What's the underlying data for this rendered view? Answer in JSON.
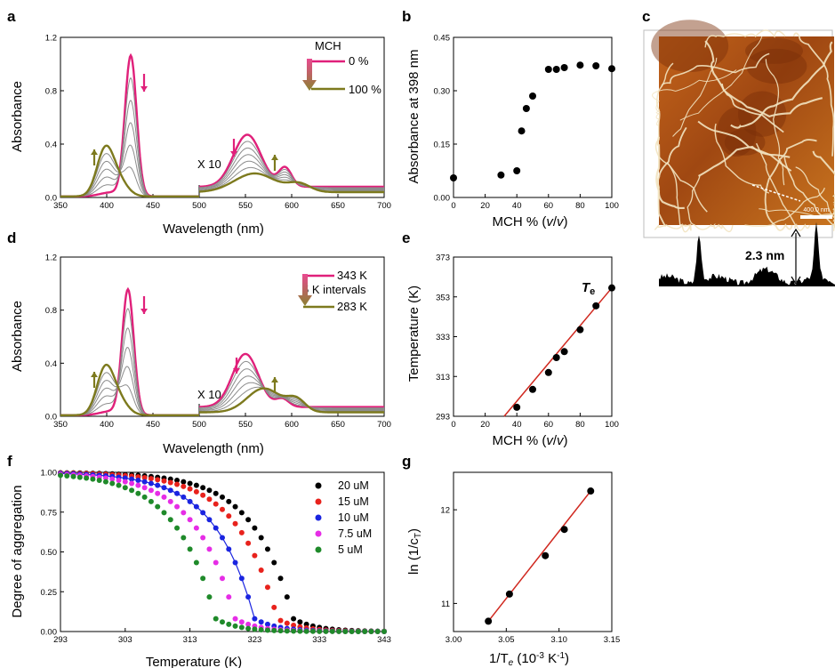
{
  "colors": {
    "magenta": "#e0207a",
    "olive": "#7d7a1e",
    "grey": "#8c8c8c",
    "fit": "#d0281f",
    "afm_dark": "#7a2e08",
    "afm_mid": "#c4651b",
    "afm_light": "#f2e3c0"
  },
  "panel_labels": [
    "a",
    "b",
    "c",
    "d",
    "e",
    "f",
    "g"
  ],
  "chart_data": [
    {
      "id": "a",
      "type": "line",
      "xlabel": "Wavelength (nm)",
      "ylabel": "Absorbance",
      "xlim": [
        350,
        700
      ],
      "ylim": [
        0,
        1.2
      ],
      "xticks": [
        "350",
        "400",
        "450",
        "500",
        "550",
        "600",
        "650",
        "700"
      ],
      "yticks": [
        "0.0",
        "0.4",
        "0.8",
        "1.2"
      ],
      "annotation": "X 10",
      "legend": {
        "title": "MCH",
        "start": "0 %",
        "end": "100 %"
      },
      "series": [
        {
          "name": "0 %",
          "color": "magenta",
          "peak_uv_x": 426,
          "peak_uv_y": 1.06,
          "vis_peaks": [
            [
              552,
              0.47
            ],
            [
              592,
              0.2
            ]
          ]
        },
        {
          "name": "100 %",
          "color": "olive",
          "peak_uv_x": 398,
          "peak_uv_y": 0.37,
          "vis_peaks": [
            [
              560,
              0.18
            ],
            [
              608,
              0.1
            ]
          ]
        }
      ]
    },
    {
      "id": "b",
      "type": "scatter",
      "xlabel": "MCH % (v/v)",
      "ylabel": "Absorbance at 398 nm",
      "xlim": [
        0,
        100
      ],
      "ylim": [
        0,
        0.45
      ],
      "xticks": [
        "0",
        "20",
        "40",
        "60",
        "80",
        "100"
      ],
      "yticks": [
        "0.00",
        "0.15",
        "0.30",
        "0.45"
      ],
      "points": [
        [
          0,
          0.055
        ],
        [
          30,
          0.063
        ],
        [
          40,
          0.075
        ],
        [
          43,
          0.187
        ],
        [
          46,
          0.25
        ],
        [
          50,
          0.285
        ],
        [
          60,
          0.36
        ],
        [
          65,
          0.36
        ],
        [
          70,
          0.365
        ],
        [
          80,
          0.372
        ],
        [
          90,
          0.37
        ],
        [
          100,
          0.362
        ]
      ]
    },
    {
      "id": "d",
      "type": "line",
      "xlabel": "Wavelength (nm)",
      "ylabel": "Absorbance",
      "xlim": [
        350,
        700
      ],
      "ylim": [
        0,
        1.2
      ],
      "xticks": [
        "350",
        "400",
        "450",
        "500",
        "550",
        "600",
        "650",
        "700"
      ],
      "yticks": [
        "0.0",
        "0.4",
        "0.8",
        "1.2"
      ],
      "annotation": "X 10",
      "legend": {
        "start": "343 K",
        "middle": "5 K intervals",
        "end": "283 K"
      },
      "series": [
        {
          "name": "343 K",
          "color": "magenta",
          "peak_uv_x": 423,
          "peak_uv_y": 0.95,
          "vis_peaks": [
            [
              550,
              0.46
            ],
            [
              590,
              0.12
            ]
          ]
        },
        {
          "name": "283 K",
          "color": "olive",
          "peak_uv_x": 398,
          "peak_uv_y": 0.37,
          "vis_peaks": [
            [
              570,
              0.2
            ],
            [
              605,
              0.12
            ]
          ]
        }
      ]
    },
    {
      "id": "e",
      "type": "scatter",
      "xlabel": "MCH % (v/v)",
      "ylabel": "Temperature (K)",
      "annotation": "T",
      "annotation_sub": "e",
      "xlim": [
        0,
        100
      ],
      "ylim": [
        293,
        373
      ],
      "xticks": [
        "0",
        "20",
        "40",
        "60",
        "80",
        "100"
      ],
      "yticks": [
        "293",
        "313",
        "333",
        "353",
        "373"
      ],
      "points": [
        [
          40,
          297.5
        ],
        [
          50,
          306.5
        ],
        [
          60,
          315
        ],
        [
          65,
          322.5
        ],
        [
          70,
          325.5
        ],
        [
          80,
          336.5
        ],
        [
          90,
          348.5
        ],
        [
          100,
          357.5
        ]
      ],
      "fit": [
        [
          32,
          293
        ],
        [
          100,
          357.5
        ]
      ]
    },
    {
      "id": "f",
      "type": "scatter",
      "xlabel": "Temperature (K)",
      "ylabel": "Degree of aggregation",
      "xlim": [
        293,
        343
      ],
      "ylim": [
        0,
        1
      ],
      "xticks": [
        "293",
        "303",
        "313",
        "323",
        "333",
        "343"
      ],
      "yticks": [
        "0.00",
        "0.25",
        "0.50",
        "0.75",
        "1.00"
      ],
      "series": [
        {
          "name": "20 uM",
          "color": "#000000",
          "Te": 329
        },
        {
          "name": "15 uM",
          "color": "#e8221c",
          "Te": 326.5
        },
        {
          "name": "10 uM",
          "color": "#1a24e0",
          "Te": 323
        },
        {
          "name": "7.5 uM",
          "color": "#e62de6",
          "Te": 320
        },
        {
          "name": "5 uM",
          "color": "#1f8a2a",
          "Te": 317
        }
      ]
    },
    {
      "id": "g",
      "type": "scatter",
      "xlabel": "1/T",
      "xlabel_sub": "e",
      "xlabel_tail": " (10",
      "xlabel_sup": "-3",
      "xlabel_end": " K",
      "xlabel_sup2": "-1",
      "xlabel_close": ")",
      "ylabel": "ln (1/c",
      "ylabel_sub": "T",
      "ylabel_close": ")",
      "xlim": [
        3.0,
        3.15
      ],
      "ylim": [
        10.7,
        12.4
      ],
      "xticks": [
        "3.00",
        "3.05",
        "3.10",
        "3.15"
      ],
      "yticks": [
        "11",
        "12"
      ],
      "points": [
        [
          3.033,
          10.81
        ],
        [
          3.053,
          11.1
        ],
        [
          3.087,
          11.51
        ],
        [
          3.105,
          11.79
        ],
        [
          3.13,
          12.2
        ]
      ],
      "fit": [
        [
          3.033,
          10.81
        ],
        [
          3.13,
          12.2
        ]
      ]
    }
  ],
  "afm": {
    "scale_label": "400.0 nm",
    "height_label": "2.3 nm"
  }
}
